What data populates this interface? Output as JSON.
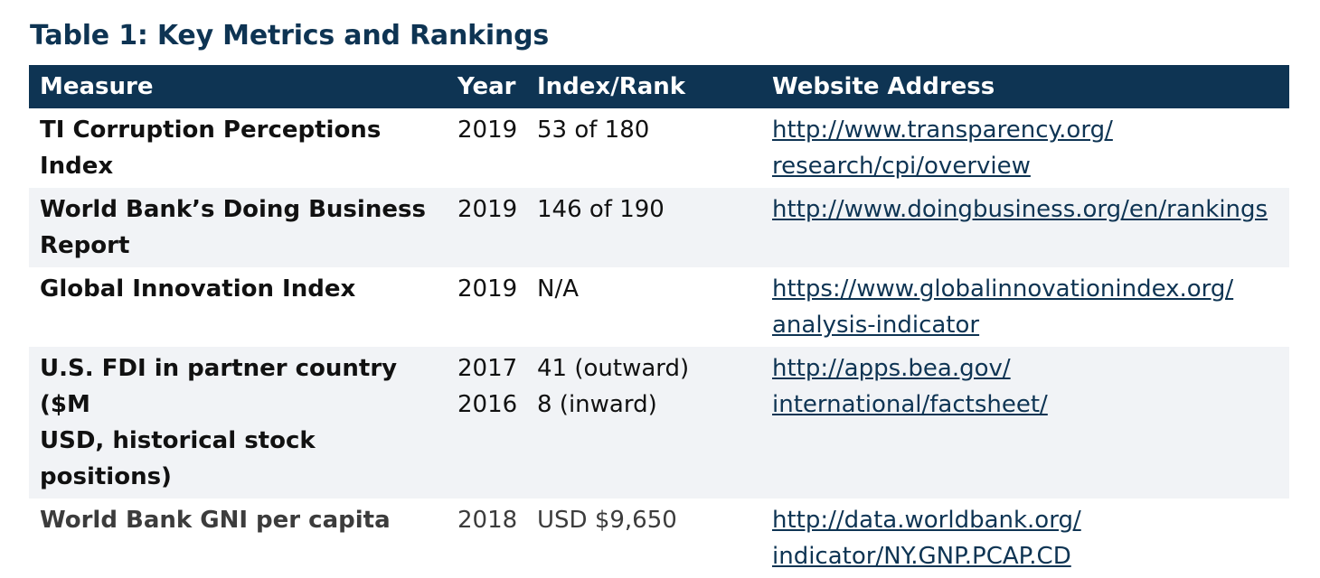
{
  "title": "Table 1: Key Metrics and Rankings",
  "headers": {
    "measure": "Measure",
    "year": "Year",
    "index": "Index/Rank",
    "website": "Website Address"
  },
  "rows": [
    {
      "measure": [
        "TI Corruption Perceptions",
        "Index"
      ],
      "year": [
        "2019"
      ],
      "index": [
        "53 of 180"
      ],
      "website": [
        "http://www.transparency.org/",
        "research/cpi/overview"
      ]
    },
    {
      "measure": [
        "World Bank’s Doing Business",
        "Report"
      ],
      "year": [
        "2019"
      ],
      "index": [
        "146 of 190"
      ],
      "website": [
        "http://www.doingbusiness.org/en/rankings"
      ]
    },
    {
      "measure": [
        "Global Innovation Index"
      ],
      "year": [
        "2019"
      ],
      "index": [
        "N/A"
      ],
      "website": [
        "https://www.globalinnovationindex.org/",
        "analysis-indicator"
      ]
    },
    {
      "measure": [
        "U.S. FDI in partner country ($M",
        "USD, historical stock positions)"
      ],
      "year": [
        "2017",
        "2016"
      ],
      "index": [
        "41 (outward)",
        "8 (inward)"
      ],
      "website": [
        "http://apps.bea.gov/",
        "international/factsheet/"
      ]
    },
    {
      "measure": [
        "World Bank GNI per capita"
      ],
      "year": [
        "2018"
      ],
      "index": [
        "USD $9,650"
      ],
      "website": [
        "http://data.worldbank.org/",
        "indicator/NY.GNP.PCAP.CD"
      ]
    }
  ]
}
